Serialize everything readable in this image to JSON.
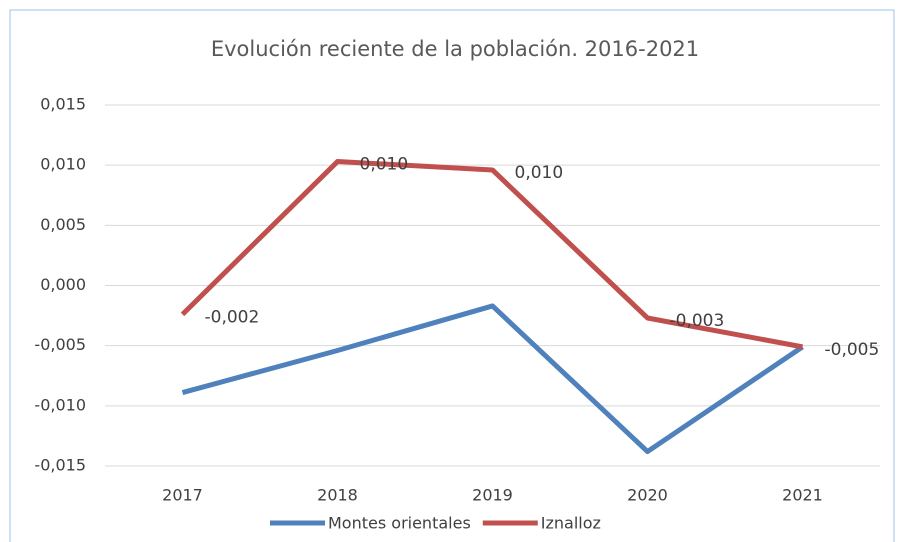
{
  "chart_data": {
    "type": "line",
    "title": "Evolución reciente de la población. 2016-2021",
    "categories": [
      "2017",
      "2018",
      "2019",
      "2020",
      "2021"
    ],
    "series": [
      {
        "name": "Montes orientales",
        "color": "#4f81bd",
        "values": [
          -0.0089,
          -0.0054,
          -0.0017,
          -0.0138,
          -0.0051
        ]
      },
      {
        "name": "Iznalloz",
        "color": "#c0504d",
        "values": [
          -0.0024,
          0.0103,
          0.0096,
          -0.0027,
          -0.0051
        ],
        "value_labels": [
          "-0,002",
          "0,010",
          "0,010",
          "-0,003",
          "-0,005"
        ]
      }
    ],
    "ylim": [
      -0.015,
      0.015
    ],
    "yticks": [
      {
        "value": -0.015,
        "label": "-0,015"
      },
      {
        "value": -0.01,
        "label": "-0,010"
      },
      {
        "value": -0.005,
        "label": "-0,005"
      },
      {
        "value": 0,
        "label": "0,000"
      },
      {
        "value": 0.005,
        "label": "0,005"
      },
      {
        "value": 0.01,
        "label": "0,010"
      },
      {
        "value": 0.015,
        "label": "0,015"
      }
    ],
    "grid": true,
    "legend": "bottom"
  }
}
